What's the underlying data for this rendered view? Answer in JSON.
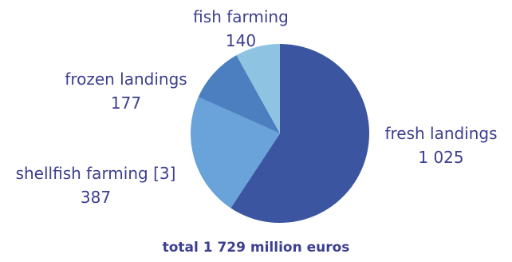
{
  "chart_data": {
    "type": "pie",
    "title": "",
    "total_label": "total 1 729 million euros",
    "slices": [
      {
        "name": "fresh landings",
        "value": 1025,
        "value_label": "1 025",
        "color": "#3b55a0"
      },
      {
        "name": "shellfish farming [3]",
        "value": 387,
        "value_label": "387",
        "color": "#69a3da"
      },
      {
        "name": "frozen landings",
        "value": 177,
        "value_label": "177",
        "color": "#4b7fc0"
      },
      {
        "name": "fish farming",
        "value": 140,
        "value_label": "140",
        "color": "#8ec4e2"
      }
    ]
  }
}
